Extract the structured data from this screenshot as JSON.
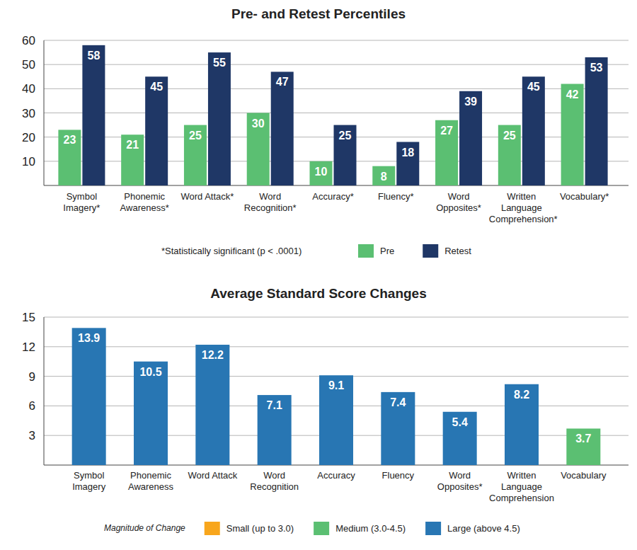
{
  "chart_data": [
    {
      "type": "bar",
      "title": "Pre- and Retest Percentiles",
      "categories": [
        "Symbol Imagery*",
        "Phonemic Awareness*",
        "Word Attack*",
        "Word Recognition*",
        "Accuracy*",
        "Fluency*",
        "Word Opposites*",
        "Written Language Comprehension*",
        "Vocabulary*"
      ],
      "series": [
        {
          "name": "Pre",
          "color": "#5bbf72",
          "values": [
            23,
            21,
            25,
            30,
            10,
            8,
            27,
            25,
            42
          ]
        },
        {
          "name": "Retest",
          "color": "#1f3766",
          "values": [
            58,
            45,
            55,
            47,
            25,
            18,
            39,
            45,
            53
          ]
        }
      ],
      "ylim": [
        0,
        60
      ],
      "yticks": [
        10,
        20,
        30,
        40,
        50,
        60
      ],
      "grid": true,
      "data_labels": true,
      "legend": "bottom",
      "annotations": [
        "*Statistically significant (p < .0001)"
      ]
    },
    {
      "type": "bar",
      "title": "Average Standard Score Changes",
      "categories": [
        "Symbol Imagery",
        "Phonemic Awareness",
        "Word Attack",
        "Word Recognition",
        "Accuracy",
        "Fluency",
        "Word Opposites*",
        "Written Language Comprehension",
        "Vocabulary"
      ],
      "values": [
        13.9,
        10.5,
        12.2,
        7.1,
        9.1,
        7.4,
        5.4,
        8.2,
        3.7
      ],
      "colors": [
        "#2876b3",
        "#2876b3",
        "#2876b3",
        "#2876b3",
        "#2876b3",
        "#2876b3",
        "#2876b3",
        "#2876b3",
        "#5bbf72"
      ],
      "ylim": [
        0,
        15
      ],
      "yticks": [
        3,
        6,
        9,
        12,
        15
      ],
      "grid": true,
      "data_labels": true,
      "legend": "bottom",
      "legend_title": "Magnitude of Change",
      "legend_entries": [
        {
          "name": "Small (up to 3.0)",
          "color": "#f8a61c"
        },
        {
          "name": "Medium (3.0-4.5)",
          "color": "#5bbf72"
        },
        {
          "name": "Large (above 4.5)",
          "color": "#2876b3"
        }
      ]
    }
  ]
}
